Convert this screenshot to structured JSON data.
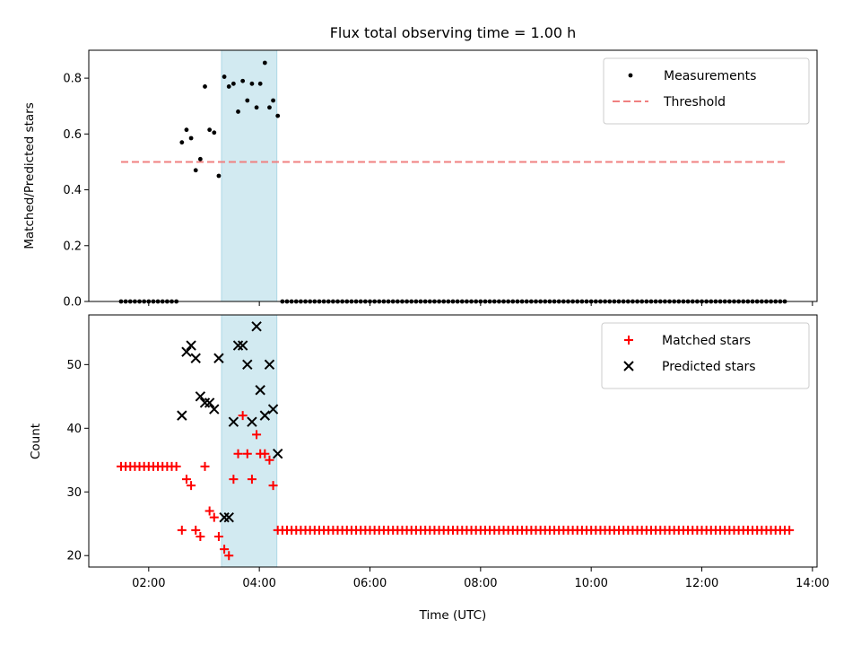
{
  "chart_data": [
    {
      "type": "scatter",
      "title": "Flux total observing time = 1.00 h",
      "xlabel": "",
      "ylabel": "Matched/Predicted stars",
      "xlim": [
        "00:55",
        "14:05"
      ],
      "ylim": [
        0,
        0.9
      ],
      "yticks": [
        "0.0",
        "0.2",
        "0.4",
        "0.6",
        "0.8"
      ],
      "grid": false,
      "legend_position": "top-right",
      "highlight_span": {
        "from": "03:19",
        "to": "04:19",
        "color": "#add8e6"
      },
      "threshold": {
        "name": "Threshold",
        "value": 0.5,
        "from": "01:30",
        "to": "13:30",
        "color": "#f08080",
        "style": "dashed"
      },
      "series": [
        {
          "name": "Measurements",
          "color": "#000000",
          "marker": "dot",
          "points": [
            [
              "02:36",
              0.57
            ],
            [
              "02:41",
              0.615
            ],
            [
              "02:46",
              0.585
            ],
            [
              "02:51",
              0.47
            ],
            [
              "02:56",
              0.51
            ],
            [
              "03:01",
              0.77
            ],
            [
              "03:06",
              0.615
            ],
            [
              "03:11",
              0.605
            ],
            [
              "03:16",
              0.45
            ],
            [
              "03:22",
              0.805
            ],
            [
              "03:27",
              0.77
            ],
            [
              "03:32",
              0.78
            ],
            [
              "03:37",
              0.68
            ],
            [
              "03:42",
              0.79
            ],
            [
              "03:47",
              0.72
            ],
            [
              "03:52",
              0.78
            ],
            [
              "03:57",
              0.695
            ],
            [
              "04:01",
              0.78
            ],
            [
              "04:06",
              0.855
            ],
            [
              "04:11",
              0.695
            ],
            [
              "04:15",
              0.72
            ],
            [
              "04:20",
              0.665
            ]
          ],
          "zero_runs": [
            {
              "from": "01:30",
              "to": "02:30",
              "step_minutes": 5,
              "value": 0
            },
            {
              "from": "04:25",
              "to": "13:30",
              "step_minutes": 5,
              "value": 0
            }
          ]
        }
      ]
    },
    {
      "type": "scatter",
      "title": "",
      "xlabel": "Time (UTC)",
      "ylabel": "Count",
      "xlim": [
        "00:55",
        "14:05"
      ],
      "ylim": [
        18.2,
        57.8
      ],
      "xticks": [
        "02:00",
        "04:00",
        "06:00",
        "08:00",
        "10:00",
        "12:00",
        "14:00"
      ],
      "yticks": [
        "20",
        "30",
        "40",
        "50"
      ],
      "grid": false,
      "legend_position": "top-right",
      "highlight_span": {
        "from": "03:19",
        "to": "04:19",
        "color": "#add8e6"
      },
      "series": [
        {
          "name": "Matched stars",
          "color": "#ff0000",
          "marker": "plus",
          "points": [
            [
              "02:36",
              24
            ],
            [
              "02:41",
              32
            ],
            [
              "02:46",
              31
            ],
            [
              "02:51",
              24
            ],
            [
              "02:56",
              23
            ],
            [
              "03:01",
              34
            ],
            [
              "03:06",
              27
            ],
            [
              "03:11",
              26
            ],
            [
              "03:16",
              23
            ],
            [
              "03:22",
              21
            ],
            [
              "03:27",
              20
            ],
            [
              "03:32",
              32
            ],
            [
              "03:37",
              36
            ],
            [
              "03:42",
              42
            ],
            [
              "03:47",
              36
            ],
            [
              "03:52",
              32
            ],
            [
              "03:57",
              39
            ],
            [
              "04:01",
              36
            ],
            [
              "04:06",
              36
            ],
            [
              "04:11",
              35
            ],
            [
              "04:15",
              31
            ],
            [
              "04:20",
              24
            ]
          ],
          "runs": [
            {
              "from": "01:30",
              "to": "02:30",
              "step_minutes": 5,
              "value": 34
            },
            {
              "from": "04:25",
              "to": "13:35",
              "step_minutes": 5,
              "value": 24
            }
          ]
        },
        {
          "name": "Predicted stars",
          "color": "#000000",
          "marker": "x",
          "points": [
            [
              "02:36",
              42
            ],
            [
              "02:41",
              52
            ],
            [
              "02:46",
              53
            ],
            [
              "02:51",
              51
            ],
            [
              "02:56",
              45
            ],
            [
              "03:01",
              44
            ],
            [
              "03:06",
              44
            ],
            [
              "03:11",
              43
            ],
            [
              "03:16",
              51
            ],
            [
              "03:22",
              26
            ],
            [
              "03:27",
              26
            ],
            [
              "03:32",
              41
            ],
            [
              "03:37",
              53
            ],
            [
              "03:42",
              53
            ],
            [
              "03:47",
              50
            ],
            [
              "03:52",
              41
            ],
            [
              "03:57",
              56
            ],
            [
              "04:01",
              46
            ],
            [
              "04:06",
              42
            ],
            [
              "04:11",
              50
            ],
            [
              "04:15",
              43
            ],
            [
              "04:20",
              36
            ]
          ]
        }
      ]
    }
  ]
}
